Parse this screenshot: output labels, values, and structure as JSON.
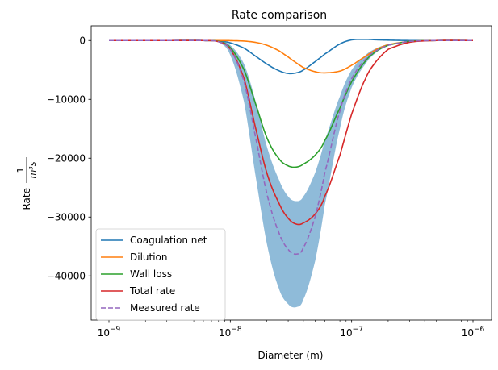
{
  "chart_data": {
    "type": "line",
    "title": "Rate comparison",
    "xlabel": "Diameter (m)",
    "ylabel": "Rate",
    "ylabel_fraction": {
      "numerator": "1",
      "denominator": "m³s"
    },
    "xscale": "log",
    "xlim": [
      1e-09,
      1e-06
    ],
    "ylim": [
      -47500,
      2500
    ],
    "x_ticks": [
      {
        "value": 1e-09,
        "base": "10",
        "exp": "−9"
      },
      {
        "value": 1e-08,
        "base": "10",
        "exp": "−8"
      },
      {
        "value": 1e-07,
        "base": "10",
        "exp": "−7"
      },
      {
        "value": 1e-06,
        "base": "10",
        "exp": "−6"
      }
    ],
    "y_ticks": [
      {
        "value": 0,
        "label": "0"
      },
      {
        "value": -10000,
        "label": "−10000"
      },
      {
        "value": -20000,
        "label": "−20000"
      },
      {
        "value": -30000,
        "label": "−30000"
      },
      {
        "value": -40000,
        "label": "−40000"
      }
    ],
    "grid": false,
    "legend_position": "lower-left",
    "x": [
      1e-09,
      3e-09,
      6e-09,
      8e-09,
      1e-08,
      1.3e-08,
      1.6e-08,
      2e-08,
      2.5e-08,
      3e-08,
      3.5e-08,
      4e-08,
      5e-08,
      6e-08,
      8e-08,
      1e-07,
      1.3e-07,
      1.6e-07,
      2e-07,
      3e-07,
      5e-07,
      1e-06
    ],
    "series": [
      {
        "name": "Coagulation net",
        "color": "#1f77b4",
        "style": "solid",
        "values": [
          0,
          0,
          0,
          -60,
          -400,
          -1300,
          -2600,
          -4000,
          -5100,
          -5600,
          -5500,
          -5000,
          -3600,
          -2300,
          -600,
          100,
          200,
          120,
          60,
          0,
          0,
          0
        ]
      },
      {
        "name": "Dilution",
        "color": "#ff7f0e",
        "style": "solid",
        "values": [
          0,
          0,
          0,
          0,
          -20,
          -100,
          -300,
          -800,
          -1700,
          -2800,
          -3800,
          -4600,
          -5300,
          -5500,
          -5200,
          -4200,
          -2700,
          -1500,
          -700,
          -150,
          0,
          0
        ]
      },
      {
        "name": "Wall loss",
        "color": "#2ca02c",
        "style": "solid",
        "values": [
          0,
          0,
          0,
          -150,
          -1200,
          -5000,
          -10500,
          -16500,
          -20000,
          -21300,
          -21500,
          -21000,
          -19500,
          -17000,
          -11500,
          -7000,
          -3500,
          -1800,
          -800,
          -150,
          0,
          0
        ]
      },
      {
        "name": "Total rate",
        "color": "#d62728",
        "style": "solid",
        "values": [
          0,
          0,
          0,
          -200,
          -1500,
          -6500,
          -14500,
          -22500,
          -27500,
          -30200,
          -31200,
          -31000,
          -29500,
          -26500,
          -19500,
          -12500,
          -6500,
          -3500,
          -1500,
          -300,
          0,
          0
        ]
      },
      {
        "name": "Measured rate",
        "color": "#9467bd",
        "style": "dashed",
        "values": [
          0,
          0,
          0,
          -200,
          -1500,
          -7000,
          -16000,
          -26000,
          -32500,
          -35500,
          -36300,
          -35200,
          -30000,
          -22500,
          -12000,
          -6500,
          -3200,
          -1700,
          -800,
          -150,
          0,
          0
        ]
      }
    ],
    "band": {
      "color": "#1f77b4",
      "lower": [
        0,
        0,
        0,
        -300,
        -2500,
        -10500,
        -22500,
        -34500,
        -42000,
        -44800,
        -45300,
        -44000,
        -37500,
        -28000,
        -15000,
        -8000,
        -4000,
        -2000,
        -900,
        -150,
        0,
        0
      ],
      "upper": [
        0,
        0,
        0,
        -100,
        -800,
        -4000,
        -10000,
        -18000,
        -23500,
        -26500,
        -27300,
        -26500,
        -22500,
        -17000,
        -9500,
        -5000,
        -2500,
        -1300,
        -600,
        -100,
        0,
        0
      ]
    }
  }
}
